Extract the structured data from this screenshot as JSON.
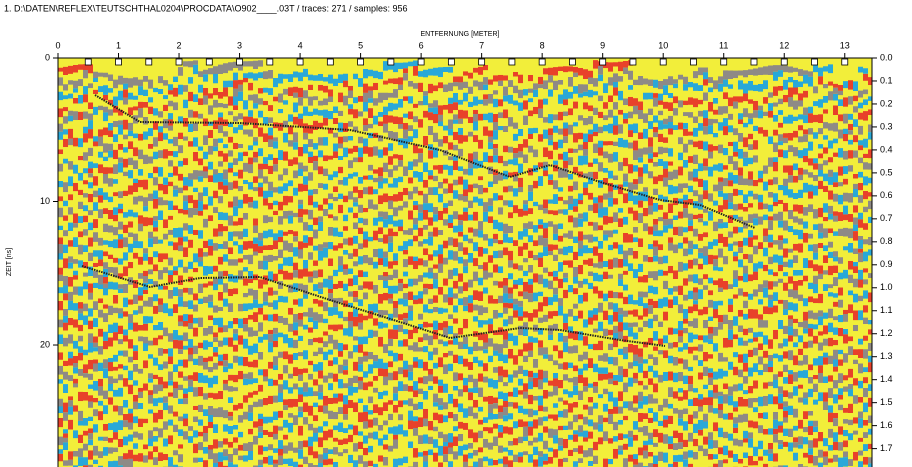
{
  "header": {
    "title": "1. D:\\DATEN\\REFLEX\\TEUTSCHTHAL0204\\PROCDATA\\O902____.03T / traces: 271 / samples: 956"
  },
  "x_axis": {
    "label": "ENTFERNUNG [METER]",
    "lim": [
      0,
      13.45
    ],
    "ticks": [
      0,
      1,
      2,
      3,
      4,
      5,
      6,
      7,
      8,
      9,
      10,
      11,
      12,
      13
    ]
  },
  "y_axis": {
    "label": "ZEIT [ns]",
    "lim": [
      0,
      28.5
    ],
    "ticks": [
      0,
      10,
      20
    ]
  },
  "y2_axis": {
    "lim": [
      0,
      1.78
    ],
    "ticks": [
      {
        "value": 0,
        "label": "0.0"
      },
      0.1,
      0.2,
      0.3,
      0.4,
      0.5,
      0.6,
      0.7,
      0.8,
      0.9,
      {
        "value": 1,
        "label": "1.0"
      },
      1.1,
      1.2,
      1.3,
      1.4,
      1.5,
      1.6,
      1.7
    ]
  }
}
